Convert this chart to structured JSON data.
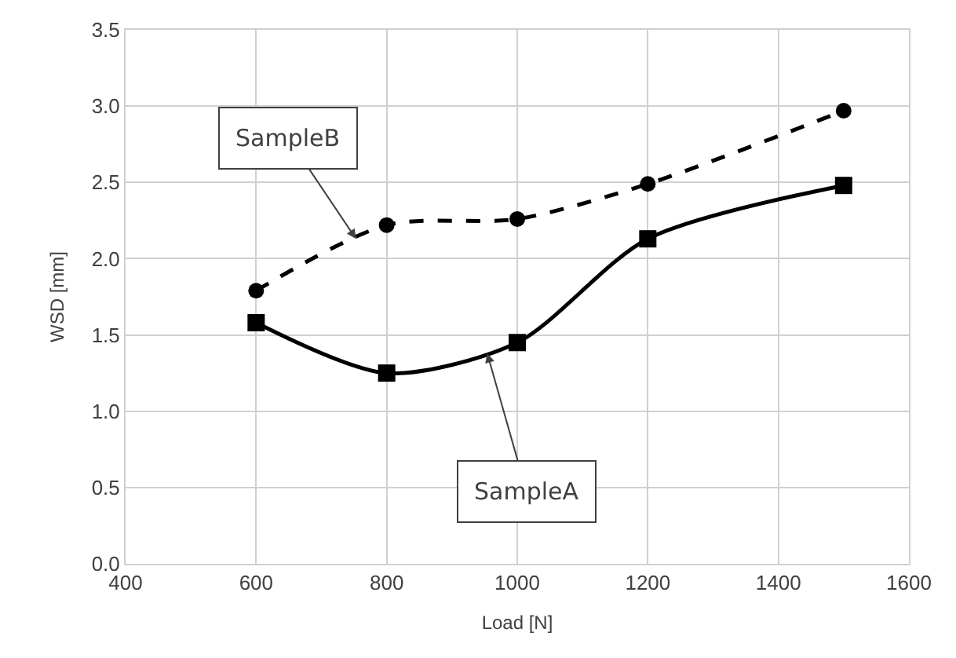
{
  "chart_data": {
    "type": "line",
    "xlabel": "Load [N]",
    "ylabel": "WSD [mm]",
    "x": [
      600,
      800,
      1000,
      1200,
      1500
    ],
    "series": [
      {
        "color": "#000000",
        "values": [
          1.58,
          1.25,
          1.45,
          2.13,
          2.48
        ],
        "marker": "square",
        "line_style": "solid"
      },
      {
        "color": "#000000",
        "values": [
          1.79,
          2.22,
          2.26,
          2.49,
          2.97
        ],
        "marker": "circle",
        "line_style": "dashed"
      }
    ],
    "annotations": [
      {
        "text": "SampleB",
        "x": 753,
        "y": 2.13
      },
      {
        "text": "SampleA",
        "x": 954,
        "y": 1.38
      }
    ],
    "xlim": [
      400,
      1600
    ],
    "xticks": [
      400,
      600,
      800,
      1000,
      1200,
      1400,
      1600
    ],
    "ylim": [
      0,
      3.5
    ],
    "yticks": [
      {
        "value": 0,
        "label": "0.0"
      },
      {
        "value": 0.5,
        "label": "0.5"
      },
      {
        "value": 1,
        "label": "1.0"
      },
      {
        "value": 1.5,
        "label": "1.5"
      },
      {
        "value": 2,
        "label": "2.0"
      },
      {
        "value": 2.5,
        "label": "2.5"
      },
      {
        "value": 3,
        "label": "3.0"
      },
      {
        "value": 3.5,
        "label": "3.5"
      }
    ],
    "grid": true
  }
}
